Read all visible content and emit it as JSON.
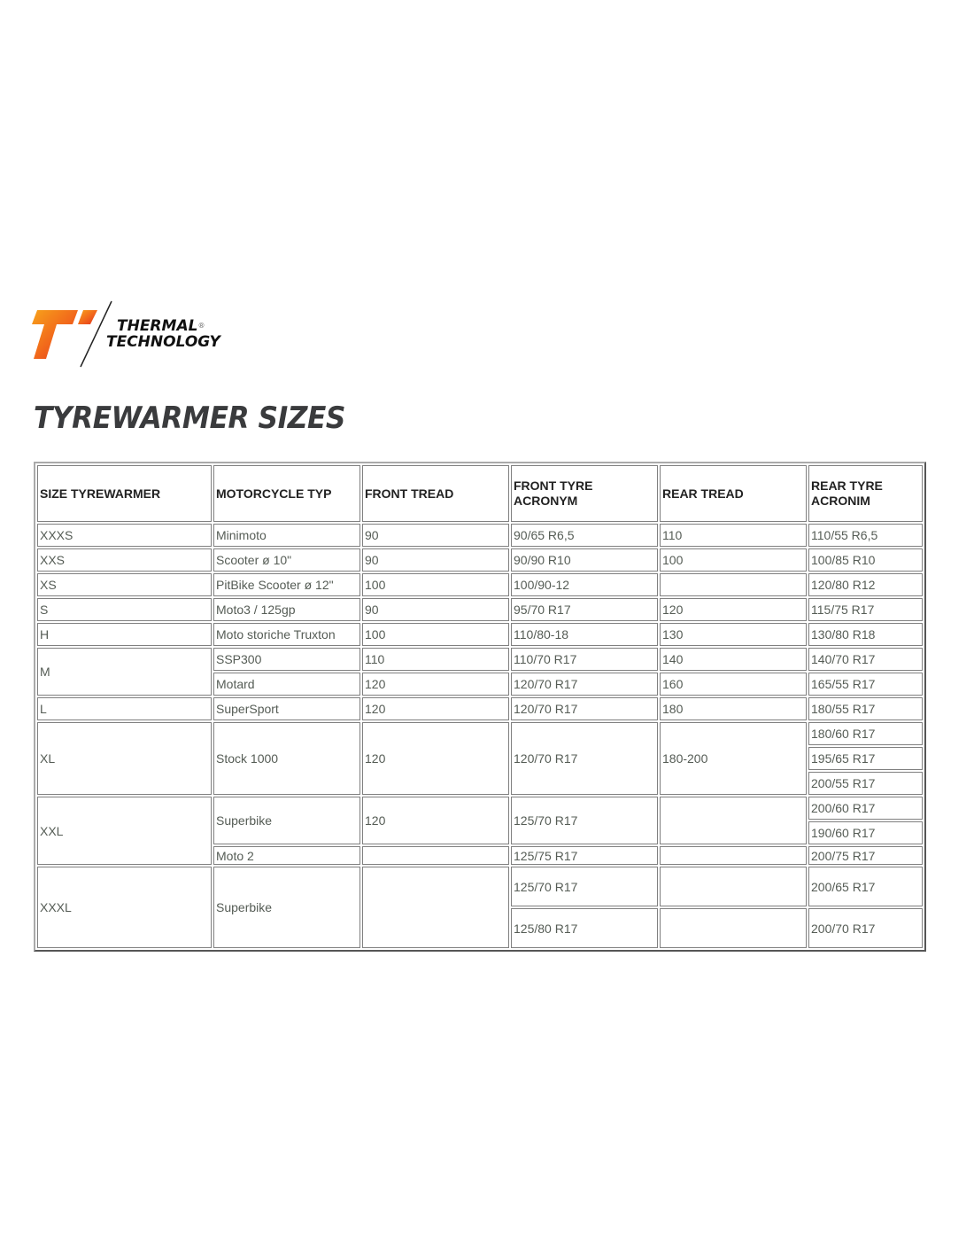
{
  "brand": {
    "name_line1": "THERMAL",
    "name_line2": "TECHNOLOGY",
    "registered": "®",
    "colors": {
      "orange": "#f26a1b",
      "red": "#e0301e",
      "yellow": "#f7a21b"
    }
  },
  "title": "TYREWARMER SIZES",
  "table": {
    "headers": [
      "SIZE TYREWARMER",
      "MOTORCYCLE TYP",
      "FRONT TREAD",
      "FRONT TYRE ACRONYM",
      "REAR TREAD",
      "REAR TYRE ACRONIM"
    ],
    "rows": [
      {
        "cls": "n",
        "cells": [
          {
            "t": "XXXS"
          },
          {
            "t": "Minimoto"
          },
          {
            "t": "90"
          },
          {
            "t": "90/65 R6,5"
          },
          {
            "t": "110"
          },
          {
            "t": "110/55 R6,5"
          }
        ]
      },
      {
        "cls": "n",
        "cells": [
          {
            "t": "XXS"
          },
          {
            "t": "Scooter ø 10\""
          },
          {
            "t": "90"
          },
          {
            "t": "90/90 R10"
          },
          {
            "t": "100"
          },
          {
            "t": "100/85 R10"
          }
        ]
      },
      {
        "cls": "n",
        "cells": [
          {
            "t": "XS"
          },
          {
            "t": "PitBike Scooter ø 12\""
          },
          {
            "t": "100"
          },
          {
            "t": "100/90-12"
          },
          {
            "t": ""
          },
          {
            "t": "120/80 R12"
          }
        ]
      },
      {
        "cls": "n",
        "cells": [
          {
            "t": "S"
          },
          {
            "t": "Moto3 / 125gp"
          },
          {
            "t": "90"
          },
          {
            "t": "95/70 R17"
          },
          {
            "t": "120"
          },
          {
            "t": "115/75 R17"
          }
        ]
      },
      {
        "cls": "n",
        "cells": [
          {
            "t": "H"
          },
          {
            "t": "Moto storiche Truxton"
          },
          {
            "t": "100"
          },
          {
            "t": "110/80-18"
          },
          {
            "t": "130"
          },
          {
            "t": "130/80 R18"
          }
        ]
      },
      {
        "cls": "n",
        "cells": [
          {
            "t": "M",
            "rs": 2
          },
          {
            "t": "SSP300"
          },
          {
            "t": "110"
          },
          {
            "t": "110/70 R17"
          },
          {
            "t": "140"
          },
          {
            "t": "140/70 R17"
          }
        ]
      },
      {
        "cls": "n",
        "cells": [
          {
            "t": "Motard"
          },
          {
            "t": "120"
          },
          {
            "t": "120/70 R17"
          },
          {
            "t": "160"
          },
          {
            "t": "165/55 R17"
          }
        ]
      },
      {
        "cls": "n",
        "cells": [
          {
            "t": "L"
          },
          {
            "t": "SuperSport"
          },
          {
            "t": "120"
          },
          {
            "t": "120/70 R17"
          },
          {
            "t": "180"
          },
          {
            "t": "180/55 R17"
          }
        ]
      },
      {
        "cls": "n",
        "cells": [
          {
            "t": "XL",
            "rs": 3
          },
          {
            "t": "Stock 1000",
            "rs": 3
          },
          {
            "t": "120",
            "rs": 3
          },
          {
            "t": "120/70 R17",
            "rs": 3
          },
          {
            "t": "180-200",
            "rs": 3
          },
          {
            "t": "180/60 R17"
          }
        ]
      },
      {
        "cls": "n",
        "cells": [
          {
            "t": "195/65 R17"
          }
        ]
      },
      {
        "cls": "n",
        "cells": [
          {
            "t": "200/55 R17"
          }
        ]
      },
      {
        "cls": "n",
        "cells": [
          {
            "t": "XXL",
            "rs": 3
          },
          {
            "t": "Superbike",
            "rs": 2
          },
          {
            "t": "120",
            "rs": 2
          },
          {
            "t": "125/70 R17",
            "rs": 2
          },
          {
            "t": "",
            "rs": 2
          },
          {
            "t": "200/60 R17"
          }
        ]
      },
      {
        "cls": "n",
        "cells": [
          {
            "t": "190/60 R17"
          }
        ]
      },
      {
        "cls": "s",
        "cells": [
          {
            "t": "Moto 2"
          },
          {
            "t": ""
          },
          {
            "t": "125/75 R17"
          },
          {
            "t": ""
          },
          {
            "t": "200/75 R17"
          }
        ]
      },
      {
        "cls": "b",
        "cells": [
          {
            "t": "XXXL",
            "rs": 2
          },
          {
            "t": "Superbike",
            "rs": 2
          },
          {
            "t": "",
            "rs": 2
          },
          {
            "t": "125/70 R17"
          },
          {
            "t": ""
          },
          {
            "t": "200/65 R17"
          }
        ]
      },
      {
        "cls": "b",
        "cells": [
          {
            "t": "125/80 R17"
          },
          {
            "t": ""
          },
          {
            "t": "200/70 R17"
          }
        ]
      }
    ]
  }
}
